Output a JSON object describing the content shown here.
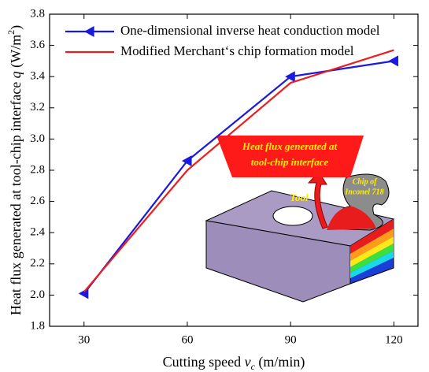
{
  "chart_data": {
    "type": "line",
    "x_label": [
      "Cutting speed ",
      "v",
      "c",
      " (m/min)"
    ],
    "y_label": [
      "Heat flux generated at tool-chip interface ",
      "q",
      " (W/m",
      "2",
      ")"
    ],
    "x": [
      30,
      60,
      90,
      120
    ],
    "xlim": [
      20,
      127
    ],
    "xticks": [
      30,
      60,
      90,
      120
    ],
    "ylim": [
      1.8,
      3.8
    ],
    "yticks": [
      {
        "value": 1.8,
        "label": "1.8"
      },
      {
        "value": 2.0,
        "label": "2.0"
      },
      {
        "value": 2.2,
        "label": "2.2"
      },
      {
        "value": 2.4,
        "label": "2.4"
      },
      {
        "value": 2.6,
        "label": "2.6"
      },
      {
        "value": 2.8,
        "label": "2.8"
      },
      {
        "value": 3.0,
        "label": "3.0"
      },
      {
        "value": 3.2,
        "label": "3.2"
      },
      {
        "value": 3.4,
        "label": "3.4"
      },
      {
        "value": 3.6,
        "label": "3.6"
      },
      {
        "value": 3.8,
        "label": "3.8"
      }
    ],
    "series": [
      {
        "name": "One-dimensional inverse heat conduction model",
        "color": "#1a1adf",
        "marker": "triangle-left",
        "values": [
          2.01,
          2.86,
          3.4,
          3.5
        ]
      },
      {
        "name": "Modified Merchant‘s chip formation model",
        "color": "#ee1c1c",
        "values": [
          2.02,
          2.8,
          3.36,
          3.57
        ]
      }
    ],
    "legend": "top-left",
    "annotations": {
      "banner": [
        "Heat flux generated at",
        "tool-chip interface"
      ],
      "tool": "Tool",
      "chip": [
        "Chip of",
        "Inconel 718"
      ]
    }
  }
}
